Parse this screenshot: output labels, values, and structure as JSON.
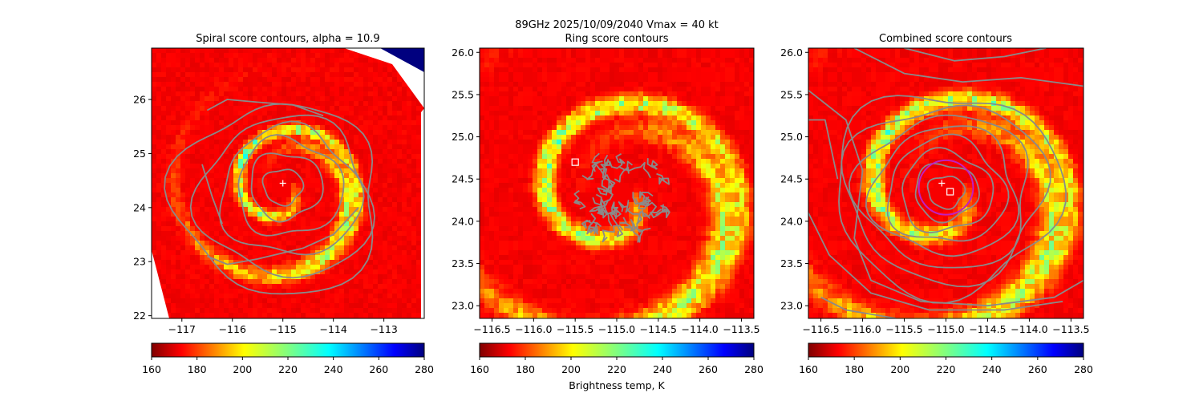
{
  "suptitle": "89GHz  2025/10/09/2040    Vmax = 40 kt",
  "colorbar_label": "Brightness temp, K",
  "chart_data": [
    {
      "type": "heatmap",
      "title": "Spiral score contours, alpha = 10.9",
      "xlim": [
        -117.6,
        -112.2
      ],
      "ylim": [
        21.95,
        26.95
      ],
      "xticks": [
        -117,
        -116,
        -115,
        -114,
        -113
      ],
      "xtick_labels": [
        "−117",
        "−116",
        "−115",
        "−114",
        "−113"
      ],
      "yticks": [
        22,
        23,
        24,
        25,
        26
      ],
      "ytick_labels": [
        "22",
        "23",
        "24",
        "25",
        "26"
      ],
      "center": [
        -115.0,
        24.35
      ],
      "marker_plus": [
        -115.0,
        24.45
      ],
      "contour_type": "spiral",
      "contour_levels": [
        0.35,
        0.65,
        0.95,
        1.25,
        1.55,
        1.85
      ],
      "colorbar": {
        "vmin": 160,
        "vmax": 280,
        "ticks": [
          160,
          180,
          200,
          220,
          240,
          260,
          280
        ],
        "tick_labels": [
          "160",
          "180",
          "200",
          "220",
          "240",
          "260",
          "280"
        ]
      }
    },
    {
      "type": "heatmap",
      "title": "Ring score contours",
      "xlim": [
        -116.65,
        -113.35
      ],
      "ylim": [
        22.85,
        26.05
      ],
      "xticks": [
        -116.5,
        -116.0,
        -115.5,
        -115.0,
        -114.5,
        -114.0,
        -113.5
      ],
      "xtick_labels": [
        "−116.5",
        "−116.0",
        "−115.5",
        "−115.0",
        "−114.5",
        "−114.0",
        "−113.5"
      ],
      "yticks": [
        23.0,
        23.5,
        24.0,
        24.5,
        25.0,
        25.5,
        26.0
      ],
      "ytick_labels": [
        "23.0",
        "23.5",
        "24.0",
        "24.5",
        "25.0",
        "25.5",
        "26.0"
      ],
      "center": [
        -115.0,
        24.3
      ],
      "marker_square": [
        -115.5,
        24.7
      ],
      "contour_type": "ring_noise",
      "contour_region": {
        "center": [
          -114.95,
          24.3
        ],
        "radius": 0.6
      },
      "colorbar": {
        "vmin": 160,
        "vmax": 280,
        "ticks": [
          160,
          180,
          200,
          220,
          240,
          260,
          280
        ],
        "tick_labels": [
          "160",
          "180",
          "200",
          "220",
          "240",
          "260",
          "280"
        ]
      }
    },
    {
      "type": "heatmap",
      "title": "Combined score contours",
      "xlim": [
        -116.65,
        -113.35
      ],
      "ylim": [
        22.85,
        26.05
      ],
      "xticks": [
        -116.5,
        -116.0,
        -115.5,
        -115.0,
        -114.5,
        -114.0,
        -113.5
      ],
      "xtick_labels": [
        "−116.5",
        "−116.0",
        "−115.5",
        "−115.0",
        "−114.5",
        "−114.0",
        "−113.5"
      ],
      "yticks": [
        23.0,
        23.5,
        24.0,
        24.5,
        25.0,
        25.5,
        26.0
      ],
      "ytick_labels": [
        "23.0",
        "23.5",
        "24.0",
        "24.5",
        "25.0",
        "25.5",
        "26.0"
      ],
      "center": [
        -115.0,
        24.35
      ],
      "marker_plus": [
        -115.05,
        24.45
      ],
      "marker_square": [
        -114.95,
        24.35
      ],
      "highlight_ring": {
        "center": [
          -115.0,
          24.4
        ],
        "radius": 0.3,
        "color": "#c020c0"
      },
      "contour_type": "combined",
      "contour_levels": [
        0.2,
        0.35,
        0.5,
        0.65,
        0.8,
        0.95,
        1.1,
        1.25
      ],
      "colorbar": {
        "vmin": 160,
        "vmax": 280,
        "ticks": [
          160,
          180,
          200,
          220,
          240,
          260,
          280
        ],
        "tick_labels": [
          "160",
          "180",
          "200",
          "220",
          "240",
          "260",
          "280"
        ]
      }
    }
  ],
  "colors": {
    "contour": "#8a8a8a",
    "marker": "#ffffff",
    "highlight": "#c020c0"
  }
}
